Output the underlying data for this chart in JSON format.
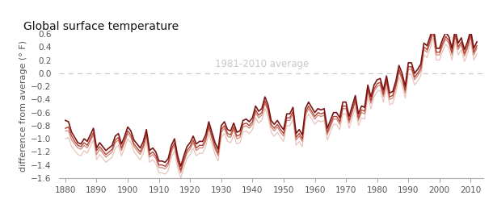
{
  "title": "Global surface temperature",
  "ylabel": "difference from average (° F)",
  "annotation": "1981-2010 average",
  "xlim": [
    1878,
    2014
  ],
  "ylim": [
    -1.6,
    0.6
  ],
  "yticks": [
    -1.6,
    -1.4,
    -1.2,
    -1.0,
    -0.8,
    -0.6,
    -0.4,
    -0.2,
    0.0,
    0.2,
    0.4,
    0.6
  ],
  "xticks": [
    1880,
    1890,
    1900,
    1910,
    1920,
    1930,
    1940,
    1950,
    1960,
    1970,
    1980,
    1990,
    2000,
    2010
  ],
  "background_color": "#ffffff",
  "dashed_color": "#c8c8c8",
  "title_fontsize": 10,
  "ylabel_fontsize": 8,
  "annotation_fontsize": 8.5,
  "tick_fontsize": 7.5,
  "years": [
    1880,
    1881,
    1882,
    1883,
    1884,
    1885,
    1886,
    1887,
    1888,
    1889,
    1890,
    1891,
    1892,
    1893,
    1894,
    1895,
    1896,
    1897,
    1898,
    1899,
    1900,
    1901,
    1902,
    1903,
    1904,
    1905,
    1906,
    1907,
    1908,
    1909,
    1910,
    1911,
    1912,
    1913,
    1914,
    1915,
    1916,
    1917,
    1918,
    1919,
    1920,
    1921,
    1922,
    1923,
    1924,
    1925,
    1926,
    1927,
    1928,
    1929,
    1930,
    1931,
    1932,
    1933,
    1934,
    1935,
    1936,
    1937,
    1938,
    1939,
    1940,
    1941,
    1942,
    1943,
    1944,
    1945,
    1946,
    1947,
    1948,
    1949,
    1950,
    1951,
    1952,
    1953,
    1954,
    1955,
    1956,
    1957,
    1958,
    1959,
    1960,
    1961,
    1962,
    1963,
    1964,
    1965,
    1966,
    1967,
    1968,
    1969,
    1970,
    1971,
    1972,
    1973,
    1974,
    1975,
    1976,
    1977,
    1978,
    1979,
    1980,
    1981,
    1982,
    1983,
    1984,
    1985,
    1986,
    1987,
    1988,
    1989,
    1990,
    1991,
    1992,
    1993,
    1994,
    1995,
    1996,
    1997,
    1998,
    1999,
    2000,
    2001,
    2002,
    2003,
    2004,
    2005,
    2006,
    2007,
    2008,
    2009,
    2010,
    2011,
    2012
  ],
  "series": [
    [
      -0.88,
      -0.88,
      -1.02,
      -1.08,
      -1.14,
      -1.16,
      -1.1,
      -1.14,
      -1.04,
      -0.94,
      -1.24,
      -1.16,
      -1.22,
      -1.28,
      -1.24,
      -1.2,
      -1.06,
      -1.02,
      -1.18,
      -1.06,
      -0.92,
      -0.98,
      -1.12,
      -1.18,
      -1.24,
      -1.14,
      -0.96,
      -1.28,
      -1.24,
      -1.3,
      -1.44,
      -1.44,
      -1.46,
      -1.4,
      -1.2,
      -1.1,
      -1.36,
      -1.52,
      -1.36,
      -1.22,
      -1.16,
      -1.06,
      -1.18,
      -1.14,
      -1.14,
      -1.04,
      -0.84,
      -1.0,
      -1.16,
      -1.26,
      -0.9,
      -0.84,
      -0.96,
      -0.98,
      -0.86,
      -1.0,
      -0.98,
      -0.82,
      -0.8,
      -0.84,
      -0.78,
      -0.6,
      -0.68,
      -0.64,
      -0.46,
      -0.58,
      -0.82,
      -0.88,
      -0.82,
      -0.9,
      -0.96,
      -0.72,
      -0.72,
      -0.62,
      -1.02,
      -0.96,
      -1.04,
      -0.64,
      -0.54,
      -0.62,
      -0.7,
      -0.64,
      -0.66,
      -0.64,
      -0.94,
      -0.82,
      -0.7,
      -0.7,
      -0.78,
      -0.54,
      -0.54,
      -0.76,
      -0.6,
      -0.44,
      -0.72,
      -0.6,
      -0.62,
      -0.28,
      -0.46,
      -0.28,
      -0.2,
      -0.18,
      -0.36,
      -0.14,
      -0.4,
      -0.38,
      -0.22,
      0.02,
      -0.1,
      -0.3,
      0.06,
      0.06,
      -0.1,
      -0.04,
      0.04,
      0.36,
      0.32,
      0.46,
      0.62,
      0.28,
      0.28,
      0.42,
      0.52,
      0.46,
      0.28,
      0.56,
      0.36,
      0.44,
      0.26,
      0.38,
      0.56,
      0.28,
      0.38
    ],
    [
      -0.72,
      -0.74,
      -0.9,
      -0.98,
      -1.06,
      -1.08,
      -1.0,
      -1.04,
      -0.94,
      -0.84,
      -1.14,
      -1.06,
      -1.12,
      -1.18,
      -1.14,
      -1.1,
      -0.96,
      -0.92,
      -1.08,
      -0.96,
      -0.82,
      -0.88,
      -1.02,
      -1.08,
      -1.14,
      -1.04,
      -0.86,
      -1.18,
      -1.14,
      -1.2,
      -1.34,
      -1.34,
      -1.36,
      -1.3,
      -1.1,
      -1.0,
      -1.26,
      -1.42,
      -1.26,
      -1.12,
      -1.06,
      -0.96,
      -1.08,
      -1.04,
      -1.04,
      -0.94,
      -0.74,
      -0.9,
      -1.06,
      -1.16,
      -0.8,
      -0.74,
      -0.86,
      -0.88,
      -0.76,
      -0.9,
      -0.88,
      -0.72,
      -0.7,
      -0.74,
      -0.68,
      -0.5,
      -0.58,
      -0.54,
      -0.36,
      -0.48,
      -0.72,
      -0.78,
      -0.72,
      -0.8,
      -0.86,
      -0.62,
      -0.62,
      -0.52,
      -0.92,
      -0.86,
      -0.94,
      -0.54,
      -0.44,
      -0.52,
      -0.6,
      -0.54,
      -0.56,
      -0.54,
      -0.84,
      -0.72,
      -0.6,
      -0.6,
      -0.68,
      -0.44,
      -0.44,
      -0.66,
      -0.5,
      -0.34,
      -0.62,
      -0.5,
      -0.52,
      -0.18,
      -0.36,
      -0.18,
      -0.1,
      -0.08,
      -0.26,
      -0.04,
      -0.3,
      -0.28,
      -0.12,
      0.12,
      0.0,
      -0.2,
      0.16,
      0.16,
      0.0,
      0.06,
      0.14,
      0.46,
      0.42,
      0.56,
      0.72,
      0.38,
      0.38,
      0.52,
      0.62,
      0.56,
      0.38,
      0.66,
      0.46,
      0.54,
      0.36,
      0.48,
      0.66,
      0.38,
      0.48
    ],
    [
      -1.0,
      -0.98,
      -1.12,
      -1.18,
      -1.24,
      -1.26,
      -1.18,
      -1.22,
      -1.12,
      -1.02,
      -1.32,
      -1.24,
      -1.3,
      -1.36,
      -1.32,
      -1.28,
      -1.14,
      -1.1,
      -1.26,
      -1.14,
      -1.0,
      -1.06,
      -1.2,
      -1.26,
      -1.32,
      -1.22,
      -1.04,
      -1.36,
      -1.32,
      -1.38,
      -1.52,
      -1.52,
      -1.54,
      -1.48,
      -1.28,
      -1.18,
      -1.44,
      -1.6,
      -1.44,
      -1.3,
      -1.24,
      -1.14,
      -1.26,
      -1.22,
      -1.22,
      -1.12,
      -0.92,
      -1.08,
      -1.24,
      -1.34,
      -0.98,
      -0.92,
      -1.04,
      -1.06,
      -0.94,
      -1.08,
      -1.06,
      -0.9,
      -0.88,
      -0.92,
      -0.86,
      -0.68,
      -0.76,
      -0.72,
      -0.54,
      -0.66,
      -0.9,
      -0.96,
      -0.9,
      -0.98,
      -1.04,
      -0.8,
      -0.8,
      -0.7,
      -1.1,
      -1.04,
      -1.12,
      -0.72,
      -0.62,
      -0.7,
      -0.78,
      -0.72,
      -0.74,
      -0.72,
      -1.02,
      -0.9,
      -0.78,
      -0.78,
      -0.86,
      -0.62,
      -0.62,
      -0.84,
      -0.68,
      -0.52,
      -0.8,
      -0.68,
      -0.7,
      -0.36,
      -0.54,
      -0.36,
      -0.28,
      -0.26,
      -0.44,
      -0.22,
      -0.48,
      -0.46,
      -0.3,
      -0.06,
      -0.18,
      -0.38,
      -0.02,
      -0.02,
      -0.18,
      -0.12,
      -0.04,
      0.28,
      0.24,
      0.38,
      0.54,
      0.2,
      0.2,
      0.34,
      0.44,
      0.38,
      0.2,
      0.48,
      0.28,
      0.36,
      0.18,
      0.3,
      0.48,
      0.2,
      0.3
    ],
    [
      -0.84,
      -0.82,
      -0.96,
      -1.04,
      -1.1,
      -1.12,
      -1.06,
      -1.1,
      -1.0,
      -0.9,
      -1.18,
      -1.12,
      -1.18,
      -1.24,
      -1.2,
      -1.16,
      -1.02,
      -0.98,
      -1.14,
      -1.02,
      -0.88,
      -0.94,
      -1.08,
      -1.14,
      -1.2,
      -1.1,
      -0.92,
      -1.24,
      -1.2,
      -1.26,
      -1.4,
      -1.4,
      -1.42,
      -1.36,
      -1.16,
      -1.06,
      -1.32,
      -1.48,
      -1.32,
      -1.18,
      -1.12,
      -1.02,
      -1.14,
      -1.1,
      -1.1,
      -1.0,
      -0.8,
      -0.96,
      -1.12,
      -1.22,
      -0.86,
      -0.8,
      -0.92,
      -0.94,
      -0.82,
      -0.96,
      -0.94,
      -0.78,
      -0.76,
      -0.8,
      -0.74,
      -0.56,
      -0.64,
      -0.6,
      -0.42,
      -0.54,
      -0.78,
      -0.84,
      -0.78,
      -0.86,
      -0.92,
      -0.68,
      -0.68,
      -0.58,
      -0.98,
      -0.92,
      -1.0,
      -0.6,
      -0.5,
      -0.58,
      -0.66,
      -0.6,
      -0.62,
      -0.6,
      -0.9,
      -0.78,
      -0.66,
      -0.66,
      -0.74,
      -0.5,
      -0.5,
      -0.72,
      -0.56,
      -0.4,
      -0.68,
      -0.56,
      -0.58,
      -0.24,
      -0.42,
      -0.24,
      -0.16,
      -0.14,
      -0.32,
      -0.1,
      -0.36,
      -0.34,
      -0.18,
      0.06,
      -0.06,
      -0.26,
      0.1,
      0.1,
      -0.06,
      0.0,
      0.08,
      0.4,
      0.36,
      0.5,
      0.66,
      0.32,
      0.32,
      0.46,
      0.56,
      0.5,
      0.32,
      0.6,
      0.4,
      0.48,
      0.3,
      0.42,
      0.6,
      0.32,
      0.42
    ]
  ],
  "line_styles": [
    {
      "color": "#c87060",
      "alpha": 0.85,
      "lw": 0.9,
      "zorder": 2
    },
    {
      "color": "#7a1515",
      "alpha": 1.0,
      "lw": 1.2,
      "zorder": 4
    },
    {
      "color": "#dba090",
      "alpha": 0.65,
      "lw": 0.85,
      "zorder": 1
    },
    {
      "color": "#aa3020",
      "alpha": 0.9,
      "lw": 1.0,
      "zorder": 3
    }
  ]
}
